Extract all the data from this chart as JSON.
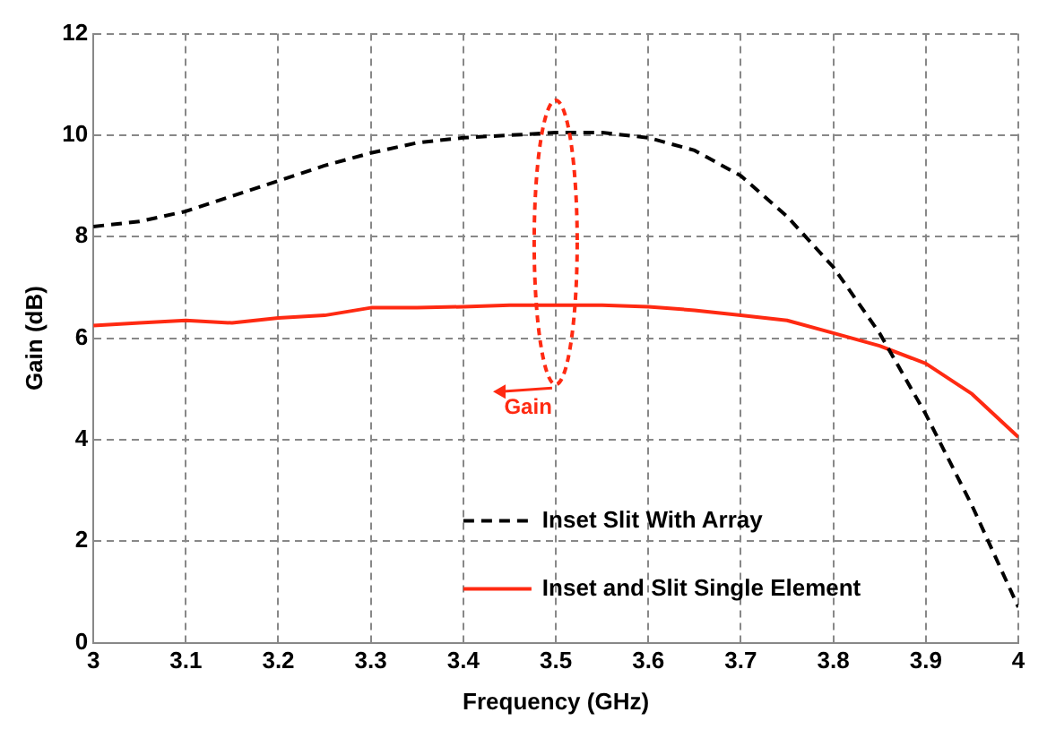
{
  "chart_data": {
    "type": "line",
    "xlabel": "Frequency (GHz)",
    "ylabel": "Gain (dB)",
    "x": [
      3,
      3.05,
      3.1,
      3.15,
      3.2,
      3.25,
      3.3,
      3.35,
      3.4,
      3.45,
      3.5,
      3.55,
      3.6,
      3.65,
      3.7,
      3.75,
      3.8,
      3.85,
      3.9,
      3.95,
      4
    ],
    "series": [
      {
        "name": "Inset Slit With Array",
        "color": "#000000",
        "line_style": "dashed",
        "values": [
          8.2,
          8.3,
          8.5,
          8.8,
          9.1,
          9.4,
          9.65,
          9.85,
          9.95,
          10.0,
          10.05,
          10.05,
          9.95,
          9.7,
          9.2,
          8.4,
          7.4,
          6.1,
          4.5,
          2.7,
          0.7
        ]
      },
      {
        "name": "Inset and Slit Single Element",
        "color": "#ff2a12",
        "line_style": "solid",
        "values": [
          6.25,
          6.3,
          6.35,
          6.3,
          6.4,
          6.45,
          6.6,
          6.6,
          6.62,
          6.65,
          6.65,
          6.65,
          6.62,
          6.55,
          6.45,
          6.35,
          6.1,
          5.85,
          5.5,
          4.9,
          4.05
        ]
      }
    ],
    "xlim": [
      3,
      4
    ],
    "xticks": [
      3,
      3.1,
      3.2,
      3.3,
      3.4,
      3.5,
      3.6,
      3.7,
      3.8,
      3.9,
      4
    ],
    "ylim": [
      0,
      12
    ],
    "yticks": [
      0,
      2,
      4,
      6,
      8,
      10,
      12
    ],
    "grid": true,
    "legend": "bottom right",
    "marker": "none",
    "annotations": [
      "Gain"
    ]
  }
}
